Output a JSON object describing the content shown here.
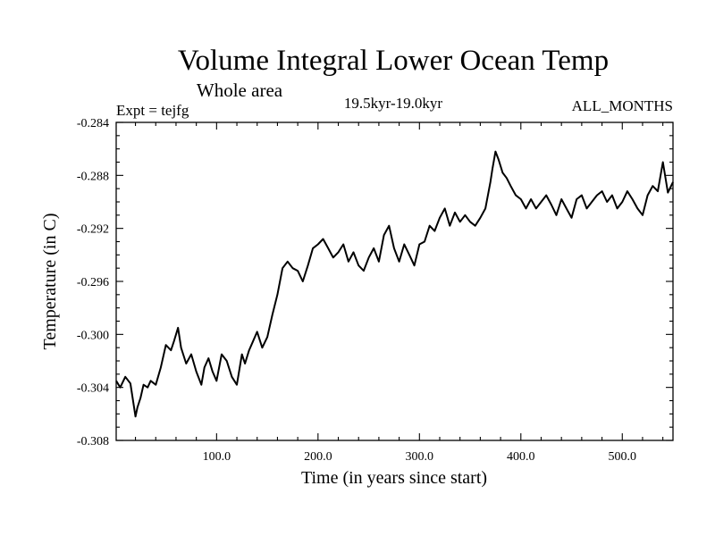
{
  "chart_data": {
    "type": "line",
    "title": "Volume Integral Lower Ocean Temp",
    "subtitle": "Whole area",
    "experiment": "Expt = tejfg",
    "period": "19.5kyr-19.0kyr",
    "months": "ALL_MONTHS",
    "xlabel": "Time (in years since start)",
    "ylabel": "Temperature (in C)",
    "xlim": [
      1,
      550
    ],
    "ylim": [
      -0.308,
      -0.284
    ],
    "x_ticks": [
      100,
      200,
      300,
      400,
      500
    ],
    "x_tick_labels": [
      "100.0",
      "200.0",
      "300.0",
      "400.0",
      "500.0"
    ],
    "y_ticks": [
      -0.308,
      -0.304,
      -0.3,
      -0.296,
      -0.292,
      -0.288,
      -0.284
    ],
    "y_tick_labels": [
      "-0.308",
      "-0.304",
      "-0.300",
      "-0.296",
      "-0.292",
      "-0.288",
      "-0.284"
    ],
    "grid": false,
    "series": [
      {
        "name": "Volume integral lower ocean temperature",
        "color": "#000000",
        "x": [
          1,
          5,
          10,
          15,
          20,
          22,
          25,
          28,
          32,
          35,
          40,
          45,
          50,
          55,
          58,
          62,
          65,
          70,
          75,
          80,
          85,
          88,
          92,
          96,
          100,
          105,
          110,
          115,
          120,
          125,
          128,
          132,
          136,
          140,
          145,
          150,
          155,
          160,
          165,
          170,
          175,
          180,
          185,
          190,
          195,
          200,
          205,
          210,
          215,
          220,
          225,
          230,
          235,
          240,
          245,
          250,
          255,
          260,
          265,
          270,
          275,
          280,
          285,
          290,
          295,
          300,
          305,
          310,
          315,
          320,
          325,
          330,
          335,
          340,
          345,
          350,
          355,
          360,
          365,
          370,
          372,
          375,
          378,
          382,
          386,
          390,
          395,
          400,
          405,
          410,
          415,
          420,
          425,
          430,
          435,
          440,
          445,
          450,
          455,
          460,
          465,
          470,
          475,
          480,
          485,
          490,
          495,
          500,
          505,
          510,
          515,
          520,
          525,
          530,
          535,
          540,
          545,
          550
        ],
        "y": [
          -0.3035,
          -0.304,
          -0.3032,
          -0.3037,
          -0.3062,
          -0.3055,
          -0.3048,
          -0.3038,
          -0.304,
          -0.3035,
          -0.3038,
          -0.3025,
          -0.3008,
          -0.3012,
          -0.3005,
          -0.2995,
          -0.301,
          -0.3022,
          -0.3015,
          -0.3028,
          -0.3038,
          -0.3025,
          -0.3018,
          -0.3028,
          -0.3035,
          -0.3015,
          -0.302,
          -0.3032,
          -0.3038,
          -0.3015,
          -0.3022,
          -0.3012,
          -0.3005,
          -0.2998,
          -0.301,
          -0.3002,
          -0.2985,
          -0.297,
          -0.295,
          -0.2945,
          -0.295,
          -0.2952,
          -0.296,
          -0.2948,
          -0.2935,
          -0.2932,
          -0.2928,
          -0.2935,
          -0.2942,
          -0.2938,
          -0.2932,
          -0.2945,
          -0.2938,
          -0.2948,
          -0.2952,
          -0.2942,
          -0.2935,
          -0.2945,
          -0.2925,
          -0.2918,
          -0.2935,
          -0.2945,
          -0.2932,
          -0.294,
          -0.2948,
          -0.2932,
          -0.293,
          -0.2918,
          -0.2922,
          -0.2912,
          -0.2905,
          -0.2918,
          -0.2908,
          -0.2915,
          -0.291,
          -0.2915,
          -0.2918,
          -0.2912,
          -0.2905,
          -0.2885,
          -0.2875,
          -0.2862,
          -0.2868,
          -0.2878,
          -0.2882,
          -0.2888,
          -0.2895,
          -0.2898,
          -0.2905,
          -0.2898,
          -0.2905,
          -0.29,
          -0.2895,
          -0.2902,
          -0.291,
          -0.2898,
          -0.2905,
          -0.2912,
          -0.2898,
          -0.2895,
          -0.2905,
          -0.29,
          -0.2895,
          -0.2892,
          -0.29,
          -0.2895,
          -0.2905,
          -0.29,
          -0.2892,
          -0.2898,
          -0.2905,
          -0.291,
          -0.2895,
          -0.2888,
          -0.2892,
          -0.287,
          -0.2893,
          -0.2885
        ]
      }
    ]
  }
}
